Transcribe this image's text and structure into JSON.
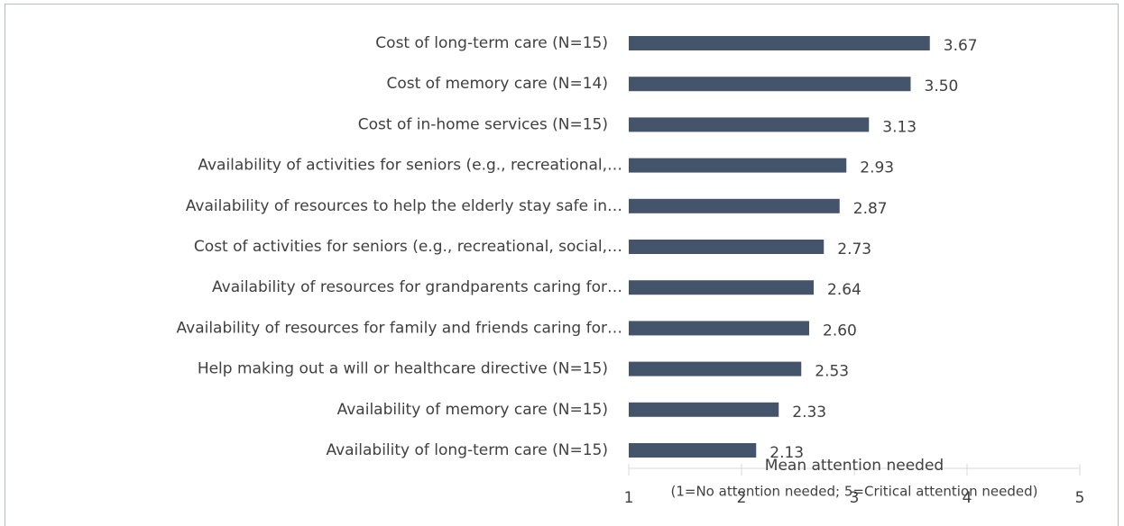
{
  "chart_data": {
    "type": "bar",
    "orientation": "horizontal",
    "categories": [
      "Cost of long-term care (N=15)",
      "Cost of memory care (N=14)",
      "Cost of in-home services (N=15)",
      "Availability of activities for seniors (e.g., recreational,…",
      "Availability of resources to help the elderly stay safe in…",
      "Cost of activities for seniors (e.g., recreational, social,…",
      "Availability of resources for grandparents caring for…",
      "Availability of resources for family and friends caring for…",
      "Help making out a will or healthcare directive (N=15)",
      "Availability of memory care (N=15)",
      "Availability of long-term care (N=15)"
    ],
    "values": [
      3.67,
      3.5,
      3.13,
      2.93,
      2.87,
      2.73,
      2.64,
      2.6,
      2.53,
      2.33,
      2.13
    ],
    "value_labels": [
      "3.67",
      "3.50",
      "3.13",
      "2.93",
      "2.87",
      "2.73",
      "2.64",
      "2.60",
      "2.53",
      "2.33",
      "2.13"
    ],
    "color": "#44546a",
    "xlabel": [
      "Mean attention needed",
      "(1=No attention needed; 5=Critical attention needed)"
    ],
    "xlim": [
      1,
      5
    ],
    "xticks": [
      1,
      2,
      3,
      4,
      5
    ]
  }
}
